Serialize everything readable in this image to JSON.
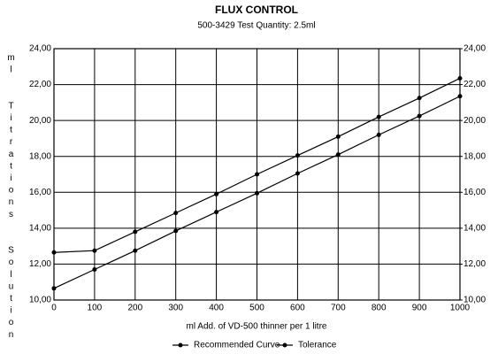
{
  "chart_data": {
    "type": "line",
    "title": "FLUX CONTROL",
    "subtitle": "500-3429   Test Quantity: 2.5ml",
    "x_label": "ml  Add. of VD-500 thinner per 1 litre",
    "y_label": "ml  Titrations  Solution",
    "x": [
      0,
      100,
      200,
      300,
      400,
      500,
      600,
      700,
      800,
      900,
      1000
    ],
    "series": [
      {
        "name": "Recommended Curve",
        "color": "#000000",
        "values": [
          10.65,
          11.7,
          12.75,
          13.85,
          14.9,
          15.95,
          17.05,
          18.1,
          19.2,
          20.25,
          21.35
        ]
      },
      {
        "name": "Tolerance",
        "color": "#000000",
        "values": [
          12.65,
          12.75,
          13.8,
          14.85,
          15.9,
          17.0,
          18.05,
          19.1,
          20.2,
          21.25,
          22.35
        ]
      }
    ],
    "xlim": [
      0,
      1000
    ],
    "xticks": [
      0,
      100,
      200,
      300,
      400,
      500,
      600,
      700,
      800,
      900,
      1000
    ],
    "ylim": [
      10,
      24
    ],
    "yticks": [
      {
        "value": 10,
        "label": "10,00"
      },
      {
        "value": 12,
        "label": "12,00"
      },
      {
        "value": 14,
        "label": "14,00"
      },
      {
        "value": 16,
        "label": "16,00"
      },
      {
        "value": 18,
        "label": "18,00"
      },
      {
        "value": 20,
        "label": "20,00"
      },
      {
        "value": 22,
        "label": "22,00"
      },
      {
        "value": 24,
        "label": "24,00"
      }
    ],
    "y2lim": [
      10,
      24
    ],
    "y2ticks": [
      {
        "value": 10,
        "label": "10,00"
      },
      {
        "value": 12,
        "label": "12,00"
      },
      {
        "value": 14,
        "label": "14,00"
      },
      {
        "value": 16,
        "label": "16,00"
      },
      {
        "value": 18,
        "label": "18,00"
      },
      {
        "value": 20,
        "label": "20,00"
      },
      {
        "value": 22,
        "label": "22,00"
      },
      {
        "value": 24,
        "label": "24,00"
      }
    ],
    "grid": true,
    "legend": "bottom"
  }
}
